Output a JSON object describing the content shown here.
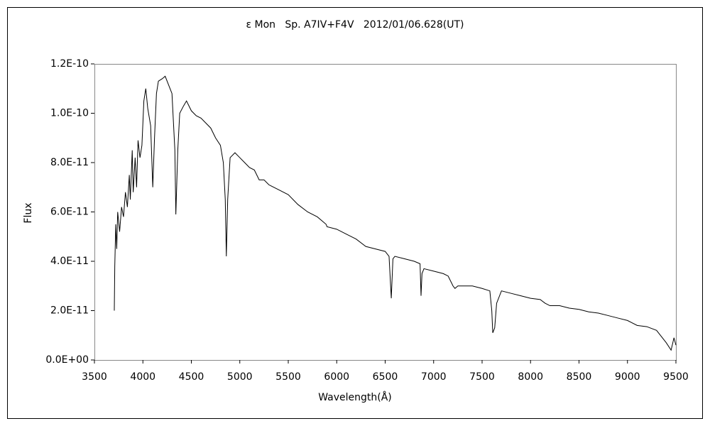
{
  "chart_data": {
    "type": "line",
    "title": "ε Mon   Sp. A7IV+F4V   2012/01/06.628(UT)",
    "x_label": "Wavelength(Å)",
    "y_label": "Flux",
    "color": "#000000",
    "xlim": [
      3500,
      9500
    ],
    "xticks": [
      3500,
      4000,
      4500,
      5000,
      5500,
      6000,
      6500,
      7000,
      7500,
      8000,
      8500,
      9000,
      9500
    ],
    "ylim": [
      0,
      1.2e-10
    ],
    "yticks": [
      {
        "value": 0,
        "label": "0.0E+00"
      },
      {
        "value": 2e-11,
        "label": "2.0E-11"
      },
      {
        "value": 4e-11,
        "label": "4.0E-11"
      },
      {
        "value": 6e-11,
        "label": "6.0E-11"
      },
      {
        "value": 8e-11,
        "label": "8.0E-11"
      },
      {
        "value": 1e-10,
        "label": "1.0E-10"
      },
      {
        "value": 1.2e-10,
        "label": "1.2E-10"
      }
    ],
    "grid": false,
    "x": [
      3705,
      3710,
      3720,
      3730,
      3740,
      3760,
      3780,
      3800,
      3820,
      3840,
      3860,
      3870,
      3890,
      3900,
      3920,
      3935,
      3950,
      3970,
      3990,
      4010,
      4030,
      4050,
      4080,
      4102,
      4120,
      4140,
      4160,
      4200,
      4230,
      4260,
      4300,
      4330,
      4340,
      4360,
      4380,
      4420,
      4450,
      4500,
      4550,
      4600,
      4650,
      4700,
      4750,
      4800,
      4830,
      4850,
      4861,
      4875,
      4900,
      4950,
      5000,
      5050,
      5100,
      5150,
      5200,
      5250,
      5300,
      5400,
      5500,
      5600,
      5700,
      5800,
      5890,
      5900,
      6000,
      6100,
      6200,
      6300,
      6400,
      6500,
      6540,
      6563,
      6580,
      6600,
      6700,
      6800,
      6860,
      6870,
      6880,
      6900,
      7000,
      7100,
      7150,
      7200,
      7220,
      7250,
      7300,
      7400,
      7500,
      7580,
      7600,
      7610,
      7630,
      7650,
      7700,
      7800,
      7900,
      8000,
      8100,
      8150,
      8200,
      8300,
      8400,
      8500,
      8600,
      8700,
      8800,
      8900,
      9000,
      9100,
      9200,
      9300,
      9400,
      9450,
      9480,
      9500
    ],
    "values": [
      2e-11,
      3.8e-11,
      5.5e-11,
      4.5e-11,
      6e-11,
      5.2e-11,
      6.2e-11,
      5.8e-11,
      6.8e-11,
      6.2e-11,
      7.5e-11,
      6.5e-11,
      8.5e-11,
      6.8e-11,
      8.2e-11,
      7e-11,
      8.9e-11,
      8.2e-11,
      8.7e-11,
      1.05e-10,
      1.1e-10,
      1.02e-10,
      9.5e-11,
      7e-11,
      9e-11,
      1.08e-10,
      1.13e-10,
      1.14e-10,
      1.15e-10,
      1.12e-10,
      1.08e-10,
      8.5e-11,
      5.9e-11,
      8.5e-11,
      1e-10,
      1.03e-10,
      1.05e-10,
      1.01e-10,
      9.9e-11,
      9.8e-11,
      9.6e-11,
      9.4e-11,
      9e-11,
      8.7e-11,
      8e-11,
      6.5e-11,
      4.2e-11,
      6.5e-11,
      8.2e-11,
      8.4e-11,
      8.2e-11,
      8e-11,
      7.8e-11,
      7.7e-11,
      7.3e-11,
      7.3e-11,
      7.1e-11,
      6.9e-11,
      6.7e-11,
      6.3e-11,
      6e-11,
      5.8e-11,
      5.5e-11,
      5.4e-11,
      5.3e-11,
      5.1e-11,
      4.9e-11,
      4.6e-11,
      4.5e-11,
      4.4e-11,
      4.2e-11,
      2.5e-11,
      4.1e-11,
      4.2e-11,
      4.1e-11,
      4e-11,
      3.9e-11,
      2.6e-11,
      3.5e-11,
      3.7e-11,
      3.6e-11,
      3.5e-11,
      3.4e-11,
      3e-11,
      2.9e-11,
      3e-11,
      3e-11,
      3e-11,
      2.9e-11,
      2.8e-11,
      2e-11,
      1.1e-11,
      1.3e-11,
      2.3e-11,
      2.8e-11,
      2.7e-11,
      2.6e-11,
      2.5e-11,
      2.45e-11,
      2.3e-11,
      2.2e-11,
      2.2e-11,
      2.1e-11,
      2.05e-11,
      1.95e-11,
      1.9e-11,
      1.8e-11,
      1.7e-11,
      1.6e-11,
      1.4e-11,
      1.35e-11,
      1.2e-11,
      7e-12,
      4e-12,
      9e-12,
      6e-12
    ]
  }
}
